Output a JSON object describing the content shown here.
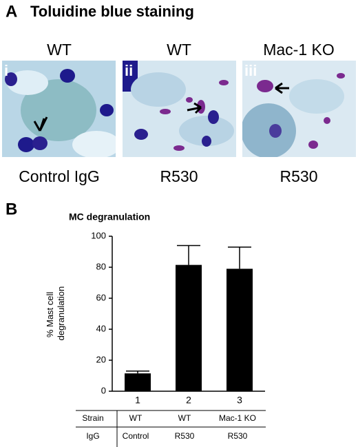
{
  "panel_a": {
    "label": "A",
    "title": "Toluidine blue staining",
    "images": [
      {
        "top": "WT",
        "roman": "i",
        "bottom": "Control IgG"
      },
      {
        "top": "WT",
        "roman": "ii",
        "bottom": "R530"
      },
      {
        "top": "Mac-1 KO",
        "roman": "iii",
        "bottom": "R530"
      }
    ]
  },
  "panel_b": {
    "label": "B",
    "chart_data": {
      "type": "bar",
      "title": "MC degranulation",
      "y_label_lines": [
        "% Mast cell",
        "degranulation"
      ],
      "categories": [
        "1",
        "2",
        "3"
      ],
      "values": [
        11.5,
        81.5,
        79
      ],
      "errors": [
        1.5,
        12.5,
        14
      ],
      "color": "#000000",
      "ylim": [
        0,
        100
      ],
      "yticks": [
        0,
        20,
        40,
        60,
        80,
        100
      ]
    },
    "table": {
      "rows": [
        [
          "Strain",
          "WT",
          "WT",
          "Mac-1 KO"
        ],
        [
          "IgG",
          "Control",
          "R530",
          "R530"
        ]
      ]
    }
  }
}
